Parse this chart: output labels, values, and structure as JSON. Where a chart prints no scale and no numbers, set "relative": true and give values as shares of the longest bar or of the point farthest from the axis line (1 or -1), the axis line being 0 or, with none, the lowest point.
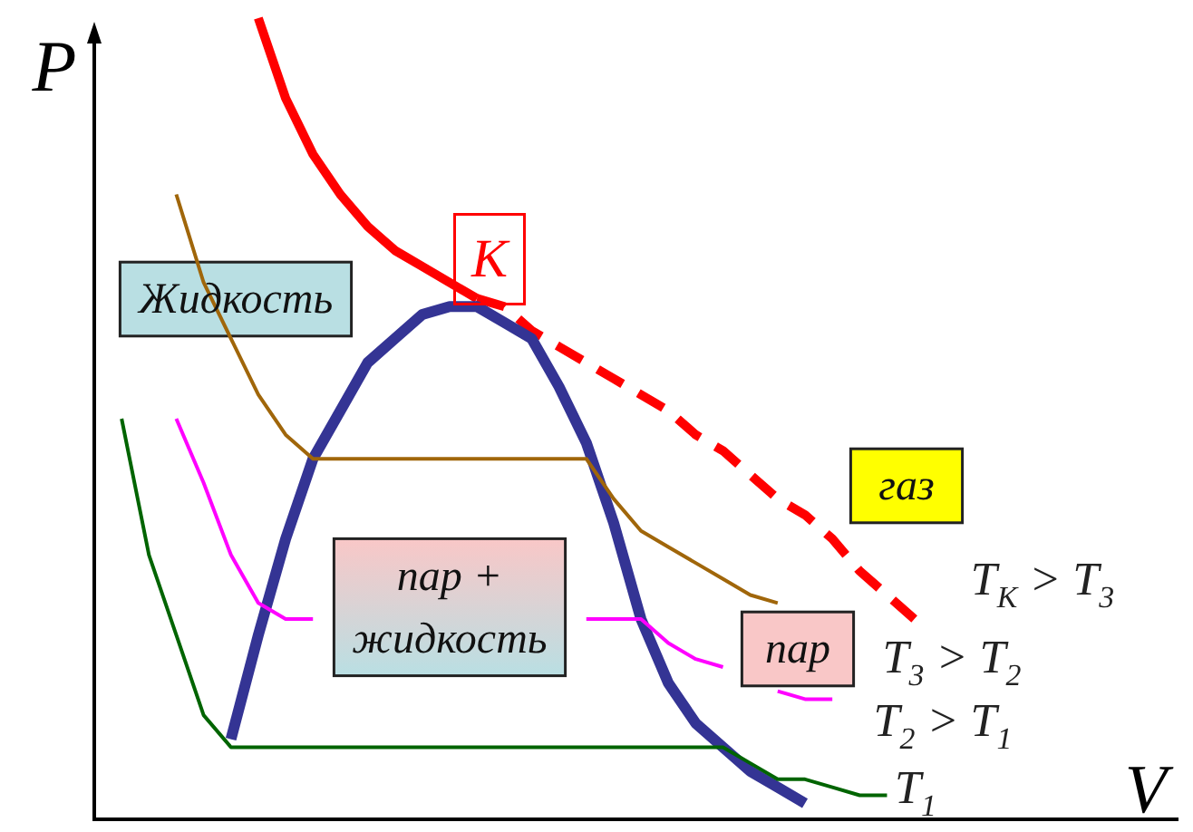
{
  "chart_data": {
    "type": "line",
    "relative": true,
    "xlabel": "V",
    "ylabel": "P",
    "marker": "none",
    "categories": [
      null,
      null,
      null,
      null,
      null,
      null,
      null,
      null,
      null,
      null,
      null,
      null,
      null,
      null,
      null,
      null,
      null,
      null,
      null,
      null,
      null,
      null,
      null,
      null,
      null,
      null,
      null,
      null,
      null,
      null,
      null,
      null,
      null,
      null,
      null,
      null,
      null,
      null,
      null,
      null
    ],
    "series": [
      {
        "color": "#ff0000",
        "line_style": "solid",
        "values": [
          null,
          null,
          null,
          null,
          null,
          null,
          1.0,
          0.9,
          0.83,
          0.78,
          0.74,
          0.71,
          0.69,
          0.67,
          0.65,
          null,
          null,
          null,
          null,
          null,
          null,
          null,
          null,
          null,
          null,
          null,
          null,
          null,
          null,
          null,
          null,
          null,
          null,
          null,
          null,
          null,
          null,
          null,
          null,
          null
        ]
      },
      {
        "color": "#ff0000",
        "line_style": "dashed",
        "values": [
          null,
          null,
          null,
          null,
          null,
          null,
          null,
          null,
          null,
          null,
          null,
          null,
          null,
          null,
          0.65,
          0.64,
          0.61,
          0.59,
          0.57,
          0.55,
          0.53,
          0.51,
          0.48,
          0.46,
          0.43,
          0.4,
          0.38,
          0.35,
          0.31,
          0.28,
          0.25,
          null,
          null,
          null,
          null,
          null,
          null,
          null,
          null,
          null
        ]
      },
      {
        "color": "#343494",
        "line_style": "solid",
        "values": [
          null,
          null,
          null,
          null,
          null,
          0.1,
          0.23,
          0.35,
          0.45,
          0.51,
          0.57,
          0.6,
          0.63,
          0.64,
          0.64,
          0.62,
          0.6,
          0.54,
          0.47,
          0.37,
          0.25,
          0.17,
          0.12,
          0.09,
          0.06,
          0.04,
          0.02,
          null,
          null,
          null,
          null,
          null,
          null,
          null,
          null,
          null,
          null,
          null,
          null,
          null
        ]
      },
      {
        "color": "#a0660a",
        "line_style": "solid",
        "values": [
          null,
          null,
          null,
          0.78,
          0.67,
          0.6,
          0.53,
          0.48,
          0.45,
          0.45,
          0.45,
          0.45,
          0.45,
          0.45,
          0.45,
          0.45,
          0.45,
          0.45,
          0.45,
          0.4,
          0.36,
          0.34,
          0.32,
          0.3,
          0.28,
          0.27,
          null,
          null,
          null,
          null,
          null,
          null,
          null,
          null,
          null,
          null,
          null,
          null,
          null,
          null
        ]
      },
      {
        "color": "#ff00ff",
        "line_style": "solid",
        "values": [
          null,
          null,
          null,
          0.5,
          0.42,
          0.33,
          0.27,
          0.25,
          0.25,
          null,
          null,
          null,
          null,
          null,
          null,
          null,
          null,
          null,
          0.25,
          0.25,
          0.25,
          0.22,
          0.2,
          0.19,
          null,
          0.16,
          0.15,
          0.15,
          null,
          null,
          null,
          null,
          null,
          null,
          null,
          null,
          null,
          null,
          null,
          null
        ]
      },
      {
        "color": "#006400",
        "line_style": "solid",
        "values": [
          null,
          0.5,
          0.33,
          0.23,
          0.13,
          0.09,
          0.09,
          0.09,
          0.09,
          0.09,
          0.09,
          0.09,
          0.09,
          0.09,
          0.09,
          0.09,
          0.09,
          0.09,
          0.09,
          0.09,
          0.09,
          0.09,
          0.09,
          0.09,
          0.07,
          0.05,
          0.05,
          0.04,
          0.03,
          0.03,
          null,
          null,
          null,
          null,
          null,
          null,
          null,
          null,
          null,
          null
        ]
      }
    ],
    "annotations": [
      "К",
      "Жидкость",
      "газ",
      "пар",
      "пар + жидкость",
      "T$_{К}$ > T$_{3}$",
      "T$_{3}$ > T$_{2}$",
      "T$_{2}$ > T$_{1}$",
      "T$_{1}$"
    ]
  }
}
